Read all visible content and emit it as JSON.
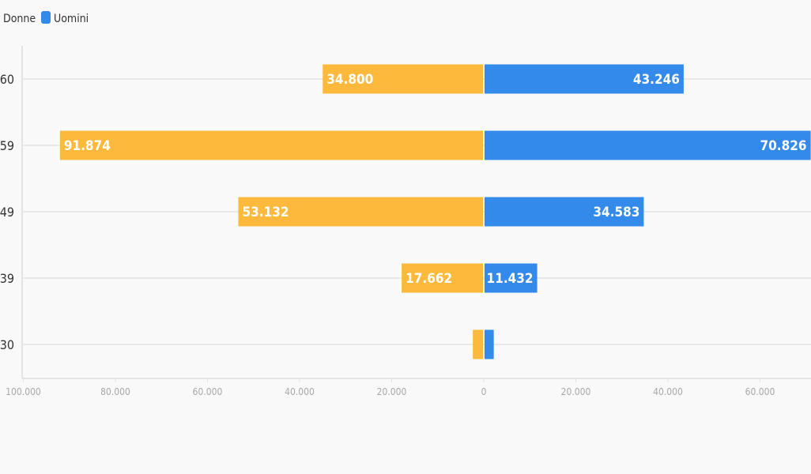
{
  "chart_data": {
    "type": "bar",
    "orientation": "horizontal-diverging",
    "categories": [
      "60",
      "59",
      "49",
      "39",
      "30"
    ],
    "series": [
      {
        "name": "Donne",
        "color": "#fdb93c",
        "direction": "left",
        "values": [
          34800,
          91874,
          53132,
          17662,
          2200
        ],
        "labels": [
          "34.800",
          "91.874",
          "53.132",
          "17.662",
          ""
        ]
      },
      {
        "name": "Uomini",
        "color": "#338aeb",
        "direction": "right",
        "values": [
          43246,
          70826,
          34583,
          11432,
          2000
        ],
        "labels": [
          "43.246",
          "70.826",
          "34.583",
          "11.432",
          ""
        ]
      }
    ],
    "x_ticks": [
      {
        "value": -100000,
        "label": "100.000"
      },
      {
        "value": -80000,
        "label": "80.000"
      },
      {
        "value": -60000,
        "label": "60.000"
      },
      {
        "value": -40000,
        "label": "40.000"
      },
      {
        "value": -20000,
        "label": "20.000"
      },
      {
        "value": 0,
        "label": "0"
      },
      {
        "value": 20000,
        "label": "20.000"
      },
      {
        "value": 40000,
        "label": "40.000"
      },
      {
        "value": 60000,
        "label": "60.000"
      }
    ],
    "xlim": [
      -100000,
      70826
    ],
    "grid": true,
    "legend_position": "top-left",
    "colors": {
      "background": "#f9f9f9",
      "grid": "#e9e9e9",
      "axis": "#e3e3e3"
    }
  }
}
